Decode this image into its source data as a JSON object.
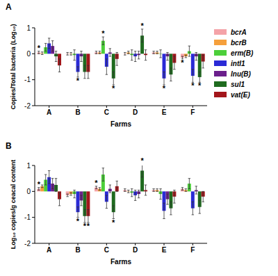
{
  "chart_data": [
    {
      "type": "bar",
      "label": "A",
      "y_label": "Copies/Total bacteria (Log₁₀)",
      "x_label": "Farms",
      "categories": [
        "A",
        "B",
        "C",
        "D",
        "E",
        "F"
      ],
      "ylim": [
        -2,
        1
      ],
      "yticks": [
        -2,
        -1,
        0,
        1
      ],
      "legend": "right",
      "series": [
        {
          "name": "bcrA",
          "color": "#f4a3a8",
          "values": [
            0.05,
            0.0,
            0.05,
            0.0,
            0.05,
            -0.15
          ],
          "errors": [
            0.05,
            0.05,
            0.05,
            0.05,
            0.05,
            0.05
          ]
        },
        {
          "name": "bcrB",
          "color": "#f5a03c",
          "values": [
            0.02,
            0.0,
            0.05,
            0.05,
            0.05,
            -0.1
          ],
          "errors": [
            0.05,
            0.05,
            0.05,
            0.05,
            0.05,
            0.05
          ]
        },
        {
          "name": "erm(B)",
          "color": "#4ccf3a",
          "values": [
            0.25,
            -0.05,
            0.5,
            -0.05,
            0.0,
            0.1
          ],
          "errors": [
            0.15,
            0.2,
            0.15,
            0.2,
            0.15,
            0.2
          ]
        },
        {
          "name": "intI1",
          "color": "#2a2ad6",
          "values": [
            0.4,
            -0.7,
            -0.5,
            -0.1,
            -0.95,
            -0.85
          ],
          "errors": [
            0.2,
            0.2,
            0.3,
            0.2,
            0.25,
            0.25
          ]
        },
        {
          "name": "lnu(B)",
          "color": "#6b1f8c",
          "values": [
            0.3,
            -0.1,
            0.05,
            -0.05,
            -0.1,
            -0.1
          ],
          "errors": [
            0.2,
            0.2,
            0.15,
            0.15,
            0.15,
            0.15
          ]
        },
        {
          "name": "sul1",
          "color": "#1f6b1f",
          "values": [
            -0.1,
            -0.7,
            -0.95,
            0.7,
            -0.8,
            -0.9
          ],
          "errors": [
            0.2,
            0.25,
            0.25,
            0.25,
            0.25,
            0.2
          ]
        },
        {
          "name": "vat(E)",
          "color": "#a3161b",
          "values": [
            -0.45,
            -0.7,
            -0.2,
            -0.05,
            -0.35,
            -0.3
          ],
          "errors": [
            0.25,
            0.25,
            0.25,
            0.2,
            0.25,
            0.25
          ]
        }
      ],
      "annotations": [
        {
          "text": "*",
          "series": 0,
          "category": 0
        },
        {
          "text": "*",
          "series": 3,
          "category": 1
        },
        {
          "text": "*",
          "series": 2,
          "category": 2
        },
        {
          "text": "*",
          "series": 5,
          "category": 2
        },
        {
          "text": "*",
          "series": 5,
          "category": 3
        },
        {
          "text": "*",
          "series": 3,
          "category": 4
        },
        {
          "text": "*",
          "series": 0,
          "category": 5
        },
        {
          "text": "*",
          "series": 3,
          "category": 5
        },
        {
          "text": "*",
          "series": 5,
          "category": 5
        }
      ]
    },
    {
      "type": "bar",
      "label": "B",
      "y_label": "Log₁₀ copies/g ceacal content",
      "x_label": "Farms",
      "categories": [
        "A",
        "B",
        "C",
        "D",
        "E",
        "F"
      ],
      "ylim": [
        -2,
        1
      ],
      "yticks": [
        -2,
        -1,
        0,
        1
      ],
      "series": [
        {
          "name": "bcrA",
          "color": "#f4a3a8",
          "values": [
            0.1,
            -0.15,
            0.15,
            0.05,
            0.05,
            0.1
          ],
          "errors": [
            0.05,
            0.05,
            0.05,
            0.05,
            0.05,
            0.05
          ]
        },
        {
          "name": "bcrB",
          "color": "#f5a03c",
          "values": [
            0.2,
            -0.1,
            0.1,
            0.0,
            0.05,
            0.05
          ],
          "errors": [
            0.05,
            0.05,
            0.05,
            0.05,
            0.05,
            0.05
          ]
        },
        {
          "name": "erm(B)",
          "color": "#4ccf3a",
          "values": [
            0.45,
            -0.1,
            0.65,
            -0.05,
            -0.1,
            0.3
          ],
          "errors": [
            0.2,
            0.15,
            0.25,
            0.15,
            0.2,
            0.2
          ]
        },
        {
          "name": "intI1",
          "color": "#2a2ad6",
          "values": [
            0.55,
            -0.8,
            -0.4,
            -0.15,
            -0.75,
            -0.65
          ],
          "errors": [
            0.25,
            0.2,
            0.25,
            0.2,
            0.3,
            0.25
          ]
        },
        {
          "name": "lnu(B)",
          "color": "#6b1f8c",
          "values": [
            0.3,
            -0.35,
            0.1,
            -0.1,
            -0.3,
            0.05
          ],
          "errors": [
            0.2,
            0.2,
            0.15,
            0.15,
            0.2,
            0.15
          ]
        },
        {
          "name": "sul1",
          "color": "#1f6b1f",
          "values": [
            0.25,
            -0.95,
            -0.8,
            0.8,
            -0.65,
            -0.6
          ],
          "errors": [
            0.25,
            0.25,
            0.25,
            0.25,
            0.25,
            0.25
          ]
        },
        {
          "name": "vat(E)",
          "color": "#a3161b",
          "values": [
            -0.3,
            -0.95,
            0.2,
            0.05,
            -0.2,
            -0.2
          ],
          "errors": [
            0.25,
            0.25,
            0.2,
            0.2,
            0.25,
            0.2
          ]
        }
      ],
      "annotations": [
        {
          "text": "*",
          "series": 0,
          "category": 0
        },
        {
          "text": "*",
          "series": 3,
          "category": 1
        },
        {
          "text": "*",
          "series": 5,
          "category": 1
        },
        {
          "text": "*",
          "series": 6,
          "category": 1
        },
        {
          "text": "*",
          "series": 0,
          "category": 2
        },
        {
          "text": "*",
          "series": 5,
          "category": 2
        },
        {
          "text": "*",
          "series": 5,
          "category": 3
        }
      ]
    }
  ]
}
